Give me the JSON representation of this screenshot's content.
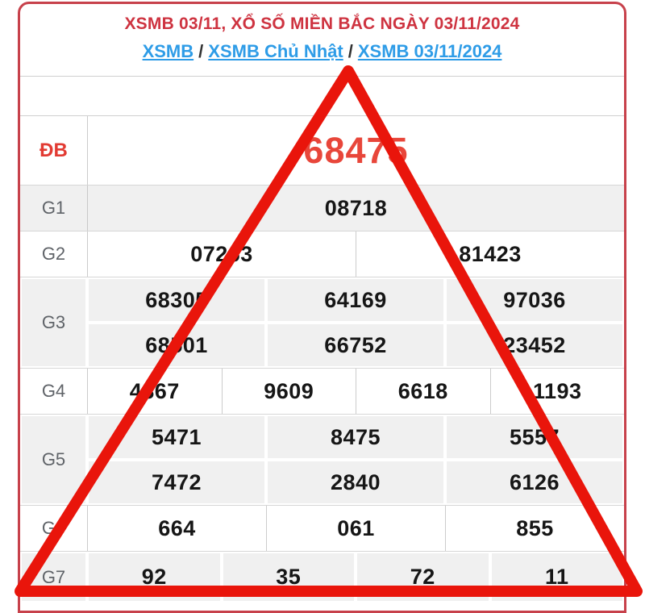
{
  "page": {
    "title": "XSMB 03/11, XỔ SỐ MIỀN BẮC NGÀY 03/11/2024",
    "breadcrumb": [
      {
        "label": "XSMB"
      },
      {
        "label": "XSMB Chủ Nhật"
      },
      {
        "label": "XSMB 03/11/2024"
      }
    ],
    "breadcrumb_separator": "/"
  },
  "results": {
    "rows": [
      {
        "label": "ĐB",
        "cells": [
          [
            "68475"
          ]
        ]
      },
      {
        "label": "G1",
        "cells": [
          [
            "08718"
          ]
        ]
      },
      {
        "label": "G2",
        "cells": [
          [
            "07263",
            "81423"
          ]
        ]
      },
      {
        "label": "G3",
        "cells": [
          [
            "68305",
            "64169",
            "97036"
          ],
          [
            "68501",
            "66752",
            "23452"
          ]
        ]
      },
      {
        "label": "G4",
        "cells": [
          [
            "4867",
            "9609",
            "6618",
            "1193"
          ]
        ]
      },
      {
        "label": "G5",
        "cells": [
          [
            "5471",
            "8475",
            "5557"
          ],
          [
            "7472",
            "2840",
            "6126"
          ]
        ]
      },
      {
        "label": "G6",
        "cells": [
          [
            "664",
            "061",
            "855"
          ]
        ]
      },
      {
        "label": "G7",
        "cells": [
          [
            "92",
            "35",
            "72",
            "11"
          ]
        ]
      }
    ]
  },
  "overlay": {
    "shape": "red-triangle-annotation",
    "stroke_color": "#e9150b"
  },
  "colors": {
    "title_red": "#ce3340",
    "link_blue": "#2e9ce7",
    "prize_red": "#e8463a",
    "panel_border": "#c7414b",
    "row_gray": "#f0f0f0"
  }
}
